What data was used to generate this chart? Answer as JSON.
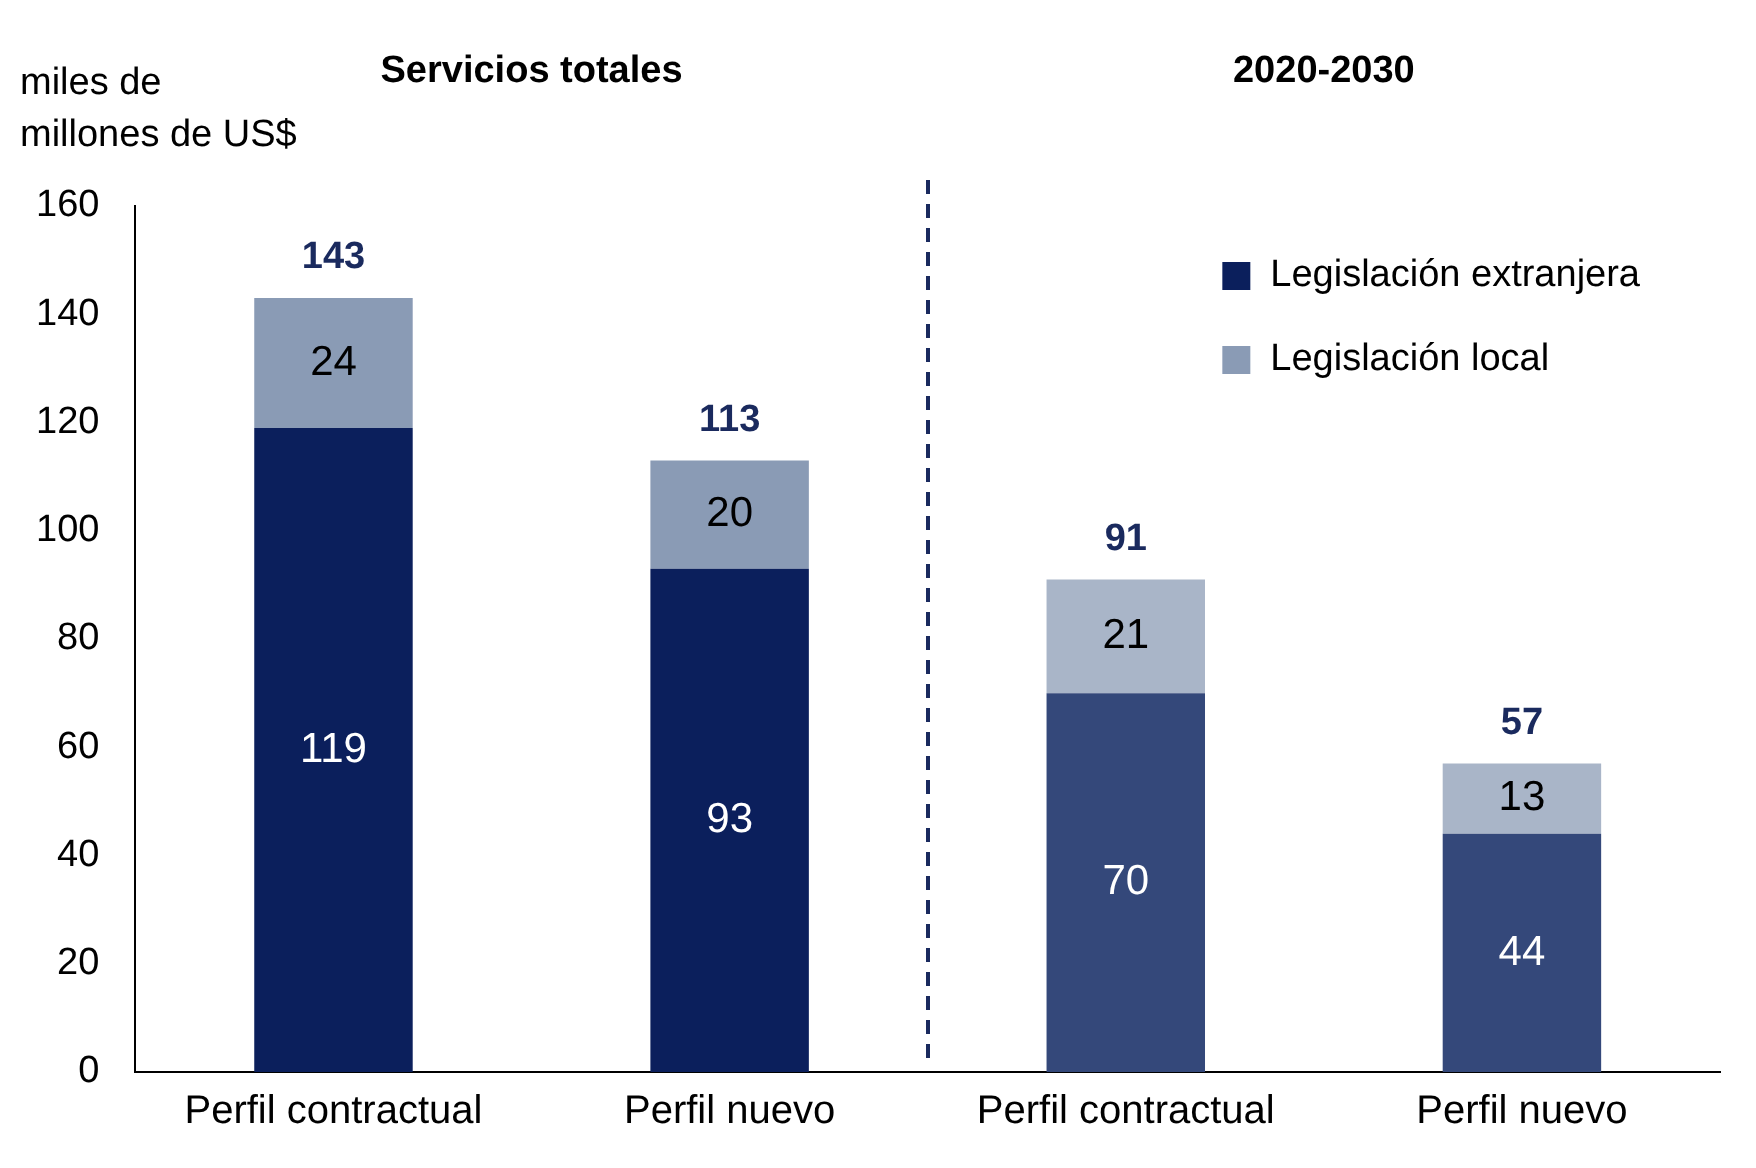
{
  "chart_data": {
    "type": "bar",
    "stacked": true,
    "ylabel": "miles de millones de US$",
    "annotations": [
      "Servicios totales",
      "2020-2030"
    ],
    "categories": [
      "Perfil contractual",
      "Perfil nuevo",
      "Perfil contractual",
      "Perfil nuevo"
    ],
    "series": [
      {
        "name": "Legislación extranjera",
        "color": "#0b1f5c",
        "colors": [
          "#0b1f5c",
          "#0b1f5c",
          "#34487a",
          "#34487a"
        ],
        "values": [
          119,
          93,
          70,
          44
        ]
      },
      {
        "name": "Legislación local",
        "color": "#8a9bb5",
        "colors": [
          "#8a9bb5",
          "#8a9bb5",
          "#a9b5c8",
          "#a9b5c8"
        ],
        "values": [
          24,
          20,
          21,
          13
        ]
      }
    ],
    "totals": [
      "143",
      "113",
      "91",
      "57"
    ],
    "data_labels": true,
    "ylim": [
      0,
      160
    ],
    "yticks": [
      0,
      20,
      40,
      60,
      80,
      100,
      120,
      140,
      160
    ],
    "grid": false,
    "legend": "top right"
  }
}
